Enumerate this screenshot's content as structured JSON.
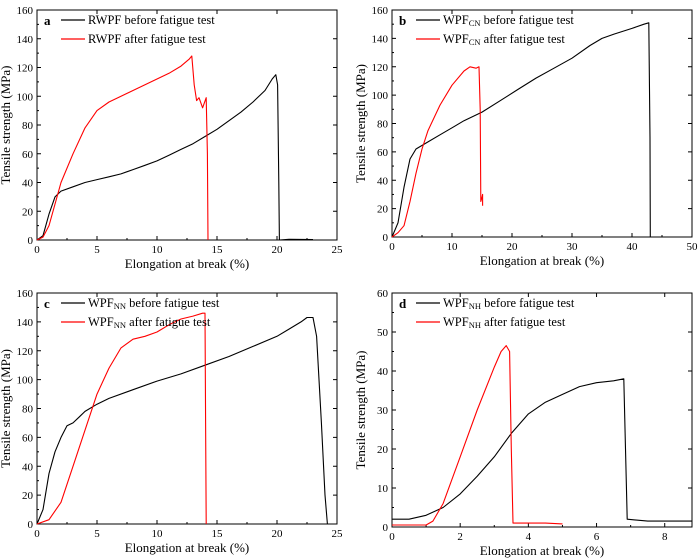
{
  "chart_data": [
    {
      "panel": "a",
      "type": "line",
      "xlabel": "Elongation at break (%)",
      "ylabel": "Tensile strength (MPa)",
      "xlim": [
        0,
        25
      ],
      "ylim": [
        0,
        160
      ],
      "xticks": [
        0,
        5,
        10,
        15,
        20,
        25
      ],
      "yticks": [
        0,
        20,
        40,
        60,
        80,
        100,
        120,
        140,
        160
      ],
      "legend_position": "top-left",
      "series": [
        {
          "name": "RWPF before fatigue test",
          "color": "#000000",
          "points": [
            [
              0,
              0
            ],
            [
              0.5,
              3
            ],
            [
              1,
              18
            ],
            [
              1.5,
              30
            ],
            [
              2,
              34
            ],
            [
              3,
              37
            ],
            [
              4,
              40
            ],
            [
              5,
              42
            ],
            [
              6,
              44
            ],
            [
              7,
              46
            ],
            [
              8,
              49
            ],
            [
              9,
              52
            ],
            [
              10,
              55
            ],
            [
              11,
              59
            ],
            [
              12,
              63
            ],
            [
              13,
              67
            ],
            [
              14,
              72
            ],
            [
              15,
              77
            ],
            [
              16,
              83
            ],
            [
              17,
              89
            ],
            [
              18,
              96
            ],
            [
              19,
              104
            ],
            [
              19.6,
              112
            ],
            [
              19.9,
              115
            ],
            [
              20.05,
              108
            ],
            [
              20.15,
              40
            ],
            [
              20.2,
              0
            ],
            [
              21,
              0.5
            ],
            [
              23,
              0.3
            ]
          ]
        },
        {
          "name": "RWPF after fatigue test",
          "color": "#ff0000",
          "points": [
            [
              0,
              0
            ],
            [
              0.5,
              2
            ],
            [
              1,
              10
            ],
            [
              1.5,
              25
            ],
            [
              2,
              40
            ],
            [
              3,
              60
            ],
            [
              4,
              78
            ],
            [
              5,
              90
            ],
            [
              6,
              96
            ],
            [
              7,
              100
            ],
            [
              8,
              104
            ],
            [
              9,
              108
            ],
            [
              10,
              112
            ],
            [
              11,
              116
            ],
            [
              12,
              121
            ],
            [
              12.7,
              126
            ],
            [
              12.9,
              128
            ],
            [
              13.1,
              108
            ],
            [
              13.3,
              97
            ],
            [
              13.5,
              99
            ],
            [
              13.8,
              92
            ],
            [
              14.1,
              99
            ],
            [
              14.2,
              60
            ],
            [
              14.25,
              0
            ]
          ]
        }
      ]
    },
    {
      "panel": "b",
      "type": "line",
      "xlabel": "Elongation at break (%)",
      "ylabel": "Tensile strength (MPa)",
      "xlim": [
        0,
        50
      ],
      "ylim": [
        0,
        160
      ],
      "xticks": [
        0,
        10,
        20,
        30,
        40,
        50
      ],
      "yticks": [
        0,
        20,
        40,
        60,
        80,
        100,
        120,
        140,
        160
      ],
      "legend_position": "top-left",
      "series": [
        {
          "name_main": "WPF",
          "name_sub": "CN",
          "name_tail": " before fatigue test",
          "color": "#000000",
          "points": [
            [
              0,
              0
            ],
            [
              1,
              10
            ],
            [
              2,
              35
            ],
            [
              3,
              55
            ],
            [
              4,
              62
            ],
            [
              6,
              67
            ],
            [
              8,
              72
            ],
            [
              10,
              77
            ],
            [
              12,
              82
            ],
            [
              15,
              88
            ],
            [
              18,
              96
            ],
            [
              21,
              104
            ],
            [
              24,
              112
            ],
            [
              27,
              119
            ],
            [
              30,
              126
            ],
            [
              33,
              135
            ],
            [
              35,
              140
            ],
            [
              37,
              143
            ],
            [
              40,
              147
            ],
            [
              42,
              150
            ],
            [
              42.8,
              151
            ],
            [
              43,
              70
            ],
            [
              43.05,
              0
            ]
          ]
        },
        {
          "name_main": "WPF",
          "name_sub": "CN",
          "name_tail": " after fatigue test",
          "color": "#ff0000",
          "points": [
            [
              0,
              0
            ],
            [
              1,
              3
            ],
            [
              2,
              8
            ],
            [
              3,
              25
            ],
            [
              4,
              45
            ],
            [
              5,
              62
            ],
            [
              6,
              75
            ],
            [
              8,
              93
            ],
            [
              10,
              107
            ],
            [
              12,
              117
            ],
            [
              13,
              120
            ],
            [
              14,
              119
            ],
            [
              14.5,
              120
            ],
            [
              14.7,
              90
            ],
            [
              14.8,
              25
            ],
            [
              15,
              28
            ],
            [
              15.1,
              30
            ],
            [
              15.1,
              22
            ]
          ]
        }
      ]
    },
    {
      "panel": "c",
      "type": "line",
      "xlabel": "Elongation at break (%)",
      "ylabel": "Tensile strength (MPa)",
      "xlim": [
        0,
        25
      ],
      "ylim": [
        0,
        160
      ],
      "xticks": [
        0,
        5,
        10,
        15,
        20,
        25
      ],
      "yticks": [
        0,
        20,
        40,
        60,
        80,
        100,
        120,
        140,
        160
      ],
      "legend_position": "top-left",
      "series": [
        {
          "name_main": "WPF",
          "name_sub": "NN",
          "name_tail": " before fatigue test",
          "color": "#000000",
          "points": [
            [
              0,
              0
            ],
            [
              0.5,
              10
            ],
            [
              1,
              35
            ],
            [
              1.5,
              50
            ],
            [
              2,
              60
            ],
            [
              2.5,
              68
            ],
            [
              3,
              70
            ],
            [
              3.5,
              74
            ],
            [
              4,
              78
            ],
            [
              5,
              83
            ],
            [
              6,
              87
            ],
            [
              8,
              93
            ],
            [
              10,
              99
            ],
            [
              12,
              104
            ],
            [
              14,
              110
            ],
            [
              16,
              116
            ],
            [
              18,
              123
            ],
            [
              20,
              130
            ],
            [
              21,
              135
            ],
            [
              22,
              140
            ],
            [
              22.5,
              143
            ],
            [
              23,
              143
            ],
            [
              23.3,
              130
            ],
            [
              23.7,
              70
            ],
            [
              24,
              20
            ],
            [
              24.2,
              0
            ]
          ]
        },
        {
          "name_main": "WPF",
          "name_sub": "NN",
          "name_tail": " after fatigue test",
          "color": "#ff0000",
          "points": [
            [
              0,
              0
            ],
            [
              1,
              3
            ],
            [
              2,
              15
            ],
            [
              3,
              40
            ],
            [
              4,
              65
            ],
            [
              5,
              90
            ],
            [
              6,
              108
            ],
            [
              7,
              122
            ],
            [
              8,
              128
            ],
            [
              9,
              130
            ],
            [
              10,
              133
            ],
            [
              11,
              138
            ],
            [
              12,
              142
            ],
            [
              13,
              144
            ],
            [
              13.8,
              146
            ],
            [
              14,
              146
            ],
            [
              14.05,
              70
            ],
            [
              14.1,
              0
            ]
          ]
        }
      ]
    },
    {
      "panel": "d",
      "type": "line",
      "xlabel": "Elongation at break (%)",
      "ylabel": "Tensile strength (MPa)",
      "xlim": [
        0,
        8.8
      ],
      "ylim": [
        0,
        60
      ],
      "xticks": [
        0,
        2,
        4,
        6,
        8
      ],
      "yticks": [
        0,
        10,
        20,
        30,
        40,
        50,
        60
      ],
      "legend_position": "top-left",
      "series": [
        {
          "name_main": "WPF",
          "name_sub": "NH",
          "name_tail": " before fatigue test",
          "color": "#000000",
          "points": [
            [
              0,
              2
            ],
            [
              0.5,
              2
            ],
            [
              1,
              3
            ],
            [
              1.5,
              5
            ],
            [
              2,
              8.5
            ],
            [
              2.5,
              13
            ],
            [
              3,
              18
            ],
            [
              3.5,
              24
            ],
            [
              4,
              29
            ],
            [
              4.5,
              32
            ],
            [
              5,
              34
            ],
            [
              5.5,
              36
            ],
            [
              6,
              37
            ],
            [
              6.5,
              37.5
            ],
            [
              6.8,
              38
            ],
            [
              6.85,
              20
            ],
            [
              6.9,
              2
            ],
            [
              7.5,
              1.5
            ],
            [
              8.8,
              1.5
            ]
          ]
        },
        {
          "name_main": "WPF",
          "name_sub": "NH",
          "name_tail": " after fatigue test",
          "color": "#ff0000",
          "points": [
            [
              0,
              0.5
            ],
            [
              1,
              0.5
            ],
            [
              1.2,
              1.5
            ],
            [
              1.5,
              6
            ],
            [
              2,
              18
            ],
            [
              2.5,
              30
            ],
            [
              3,
              41
            ],
            [
              3.2,
              45
            ],
            [
              3.35,
              46.5
            ],
            [
              3.45,
              45
            ],
            [
              3.5,
              20
            ],
            [
              3.55,
              1
            ],
            [
              4.5,
              1
            ],
            [
              5,
              0.8
            ]
          ]
        }
      ]
    }
  ]
}
